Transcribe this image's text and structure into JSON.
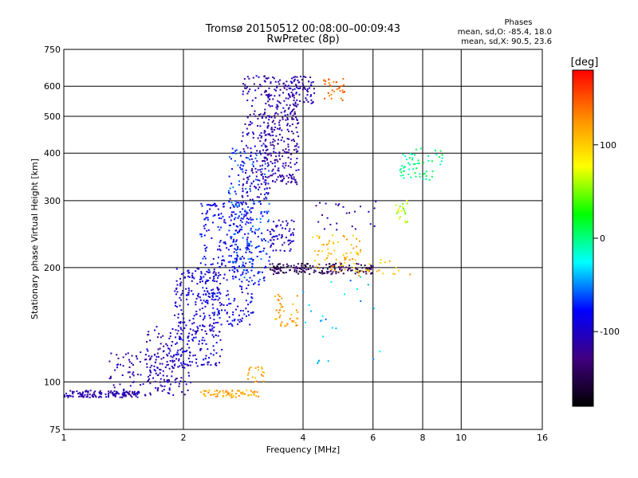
{
  "chart_data": {
    "type": "scatter",
    "title": "Tromsø 20150512 00:08:00–00:09:43",
    "subtitle": "RwPretec (8p)",
    "xlabel": "Frequency [MHz]",
    "ylabel": "Stationary phase Virtual Height [km]",
    "x_scale": "log",
    "y_scale": "log",
    "xlim": [
      1,
      16
    ],
    "ylim": [
      75,
      750
    ],
    "x_ticks": [
      1,
      2,
      4,
      6,
      8,
      10,
      16
    ],
    "y_ticks": [
      75,
      100,
      200,
      300,
      400,
      500,
      600,
      750
    ],
    "grid": true,
    "stats": {
      "heading": "Phases",
      "line_o": "mean, sd,O: -85.4, 18.0",
      "line_x": "mean, sd,X:  90.5, 23.6"
    },
    "colorbar": {
      "label": "[deg]",
      "range": [
        -180,
        180
      ],
      "ticks": [
        100,
        0,
        -100
      ],
      "colors": [
        "#ff0000",
        "#ff8c00",
        "#ffff00",
        "#00ff00",
        "#00ffff",
        "#0000ff",
        "#400080",
        "#000000"
      ]
    },
    "clusters": [
      {
        "xr": [
          1.0,
          1.55
        ],
        "yr": [
          91,
          95
        ],
        "n": 140,
        "phase": -110
      },
      {
        "xr": [
          1.3,
          1.9
        ],
        "yr": [
          95,
          120
        ],
        "n": 90,
        "phase": -110
      },
      {
        "xr": [
          1.6,
          2.1
        ],
        "yr": [
          92,
          140
        ],
        "n": 130,
        "phase": -105
      },
      {
        "xr": [
          1.9,
          2.5
        ],
        "yr": [
          110,
          200
        ],
        "n": 260,
        "phase": -95
      },
      {
        "xr": [
          2.2,
          3.0
        ],
        "yr": [
          140,
          300
        ],
        "n": 320,
        "phase": -85
      },
      {
        "xr": [
          2.6,
          3.3
        ],
        "yr": [
          180,
          420
        ],
        "n": 220,
        "phase": -70
      },
      {
        "xr": [
          2.8,
          3.3
        ],
        "yr": [
          300,
          640
        ],
        "n": 150,
        "phase": -110
      },
      {
        "xr": [
          3.2,
          3.9
        ],
        "yr": [
          330,
          640
        ],
        "n": 300,
        "phase": -115
      },
      {
        "xr": [
          3.7,
          4.3
        ],
        "yr": [
          540,
          640
        ],
        "n": 60,
        "phase": -110
      },
      {
        "xr": [
          3.3,
          3.8
        ],
        "yr": [
          220,
          270
        ],
        "n": 60,
        "phase": -100
      },
      {
        "xr": [
          3.3,
          6.0
        ],
        "yr": [
          192,
          205
        ],
        "n": 170,
        "phase": -145
      },
      {
        "xr": [
          2.2,
          3.1
        ],
        "yr": [
          91,
          95
        ],
        "n": 70,
        "phase": 115
      },
      {
        "xr": [
          2.9,
          3.2
        ],
        "yr": [
          100,
          110
        ],
        "n": 20,
        "phase": 120
      },
      {
        "xr": [
          3.4,
          3.9
        ],
        "yr": [
          140,
          170
        ],
        "n": 40,
        "phase": 120
      },
      {
        "xr": [
          4.2,
          5.6
        ],
        "yr": [
          195,
          245
        ],
        "n": 70,
        "phase": 110
      },
      {
        "xr": [
          4.5,
          5.1
        ],
        "yr": [
          550,
          630
        ],
        "n": 30,
        "phase": 140
      },
      {
        "xr": [
          6.8,
          7.4
        ],
        "yr": [
          260,
          300
        ],
        "n": 20,
        "phase": 60
      },
      {
        "xr": [
          7.0,
          9.0
        ],
        "yr": [
          340,
          420
        ],
        "n": 60,
        "phase": 0
      },
      {
        "xr": [
          4.2,
          6.2
        ],
        "yr": [
          250,
          300
        ],
        "n": 25,
        "phase": -110
      },
      {
        "xr": [
          4.0,
          6.5
        ],
        "yr": [
          110,
          190
        ],
        "n": 25,
        "phase": -40
      },
      {
        "xr": [
          5.5,
          7.5
        ],
        "yr": [
          190,
          210
        ],
        "n": 20,
        "phase": 110
      }
    ]
  }
}
